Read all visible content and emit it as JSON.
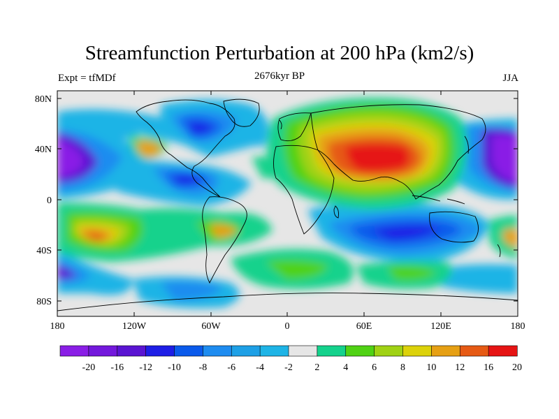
{
  "title": "Streamfunction Perturbation at 200 hPa (km2/s)",
  "subtitle_left": "Expt = tfMDf",
  "subtitle_center": "2676kyr BP",
  "subtitle_right": "JJA",
  "axes": {
    "y_ticks": [
      "80N",
      "40N",
      "0",
      "40S",
      "80S"
    ],
    "x_ticks": [
      "180",
      "120W",
      "60W",
      "0",
      "60E",
      "120E",
      "180"
    ]
  },
  "colorbar": {
    "colors": [
      "#8a1ee6",
      "#7318dc",
      "#5a14d2",
      "#1e1ee6",
      "#0a5aeb",
      "#1e8cf0",
      "#1ea0e6",
      "#1eb4e6",
      "#e6e6e6",
      "#14d28c",
      "#50d214",
      "#a0d214",
      "#dcd20a",
      "#e6a014",
      "#e65a14",
      "#e61414"
    ],
    "labels": [
      "-20",
      "-16",
      "-12",
      "-10",
      "-8",
      "-6",
      "-4",
      "-2",
      "2",
      "4",
      "6",
      "8",
      "10",
      "12",
      "16",
      "20"
    ]
  }
}
